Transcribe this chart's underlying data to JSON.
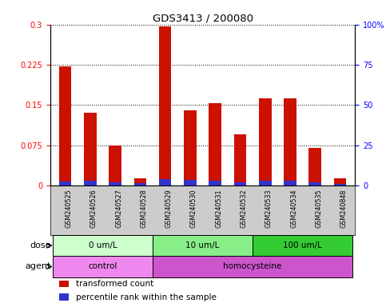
{
  "title": "GDS3413 / 200080",
  "samples": [
    "GSM240525",
    "GSM240526",
    "GSM240527",
    "GSM240528",
    "GSM240529",
    "GSM240530",
    "GSM240531",
    "GSM240532",
    "GSM240533",
    "GSM240534",
    "GSM240535",
    "GSM240848"
  ],
  "red_values": [
    0.222,
    0.135,
    0.075,
    0.013,
    0.297,
    0.14,
    0.153,
    0.095,
    0.163,
    0.163,
    0.07,
    0.013
  ],
  "blue_values": [
    0.007,
    0.009,
    0.006,
    0.004,
    0.012,
    0.01,
    0.008,
    0.005,
    0.008,
    0.009,
    0.006,
    0.003
  ],
  "red_color": "#cc1100",
  "blue_color": "#3333cc",
  "left_ylim": [
    0,
    0.3
  ],
  "right_ylim": [
    0,
    100
  ],
  "left_yticks": [
    0,
    0.075,
    0.15,
    0.225,
    0.3
  ],
  "left_yticklabels": [
    "0",
    "0.075",
    "0.15",
    "0.225",
    "0.3"
  ],
  "right_yticks": [
    0,
    25,
    50,
    75,
    100
  ],
  "right_yticklabels": [
    "0",
    "25",
    "50",
    "75",
    "100%"
  ],
  "dose_groups": [
    {
      "label": "0 um/L",
      "start": 0,
      "end": 4,
      "color": "#ccffcc"
    },
    {
      "label": "10 um/L",
      "start": 4,
      "end": 8,
      "color": "#88ee88"
    },
    {
      "label": "100 um/L",
      "start": 8,
      "end": 12,
      "color": "#33cc33"
    }
  ],
  "agent_groups": [
    {
      "label": "control",
      "start": 0,
      "end": 4,
      "color": "#ee88ee"
    },
    {
      "label": "homocysteine",
      "start": 4,
      "end": 12,
      "color": "#cc55cc"
    }
  ],
  "bar_width": 0.5,
  "bg_color": "#ffffff",
  "tick_bg_color": "#cccccc",
  "legend_items": [
    {
      "label": "transformed count",
      "color": "#cc1100"
    },
    {
      "label": "percentile rank within the sample",
      "color": "#3333cc"
    }
  ]
}
